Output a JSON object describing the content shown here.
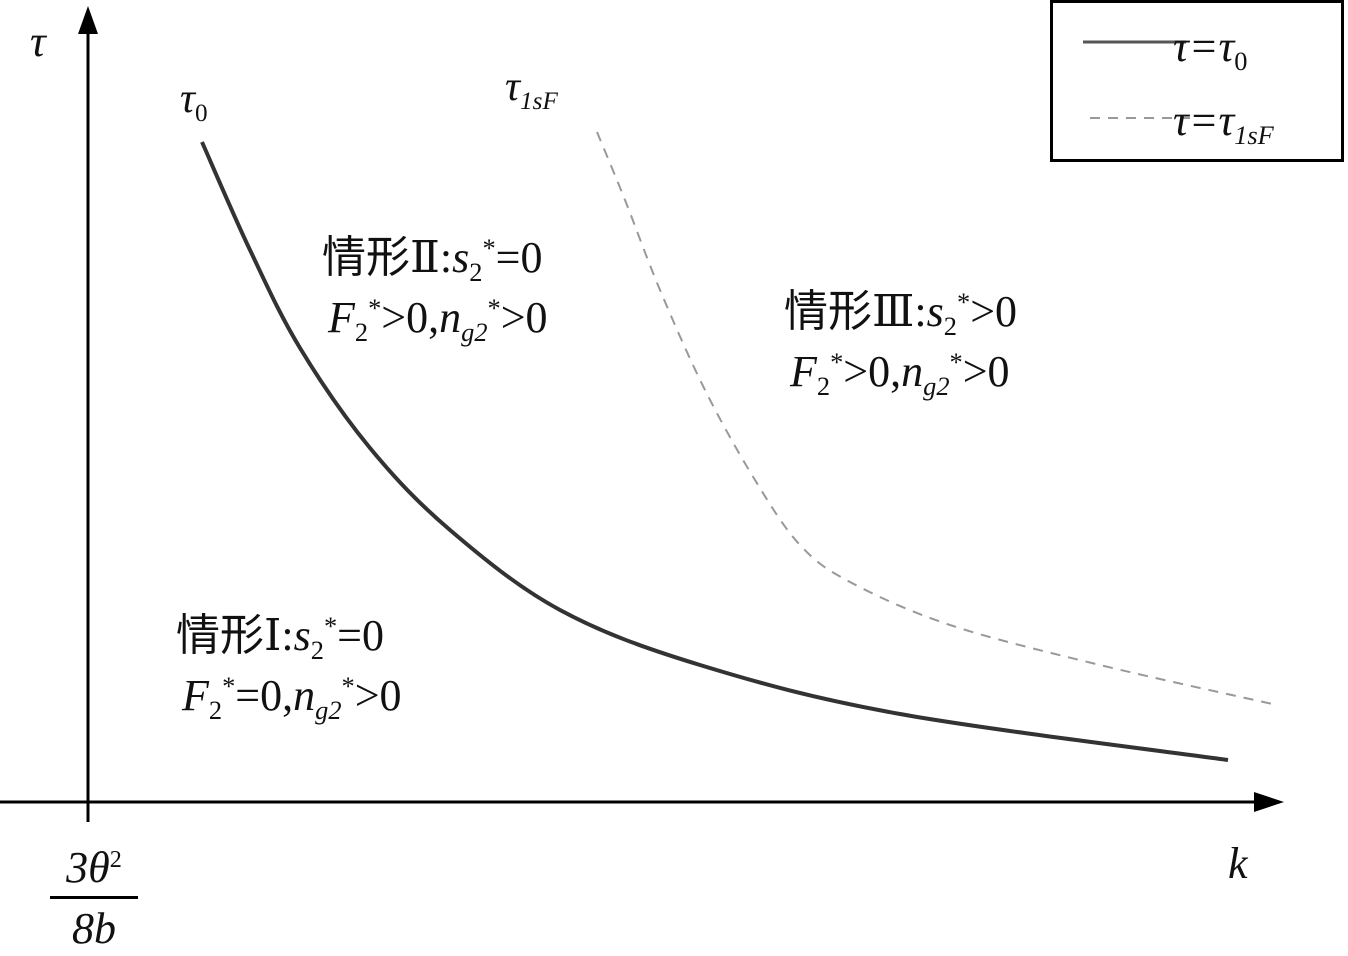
{
  "axes": {
    "y_label": "τ",
    "x_label": "k",
    "x_origin_label": {
      "numerator": "3θ",
      "numerator_sup": "2",
      "denominator": "8b"
    }
  },
  "curve_labels": [
    {
      "base": "τ",
      "sub": "0"
    },
    {
      "base": "τ",
      "sub": "1sF"
    }
  ],
  "legend": {
    "items": [
      {
        "base": "τ=τ",
        "sub": "0",
        "style": "solid",
        "color": "#333333"
      },
      {
        "base": "τ=τ",
        "sub": "1sF",
        "style": "dashed",
        "color": "#999999"
      }
    ]
  },
  "regions": [
    {
      "name": "case-1",
      "line1": [
        [
          "情形Ⅰ:",
          "n"
        ],
        [
          "s",
          "i"
        ],
        [
          "2",
          "sub"
        ],
        [
          "*",
          "sup"
        ],
        [
          "=0",
          "n"
        ]
      ],
      "line2": [
        [
          "F",
          "i"
        ],
        [
          "2",
          "sub"
        ],
        [
          "*",
          "sup"
        ],
        [
          "=0,",
          "n"
        ],
        [
          "n",
          "i"
        ],
        [
          "g2",
          "subi"
        ],
        [
          "*",
          "sup"
        ],
        [
          ">0",
          "n"
        ]
      ]
    },
    {
      "name": "case-2",
      "line1": [
        [
          "情形Ⅱ:",
          "n"
        ],
        [
          "s",
          "i"
        ],
        [
          "2",
          "sub"
        ],
        [
          "*",
          "sup"
        ],
        [
          "=0",
          "n"
        ]
      ],
      "line2": [
        [
          "F",
          "i"
        ],
        [
          "2",
          "sub"
        ],
        [
          "*",
          "sup"
        ],
        [
          ">0,",
          "n"
        ],
        [
          "n",
          "i"
        ],
        [
          "g2",
          "subi"
        ],
        [
          "*",
          "sup"
        ],
        [
          ">0",
          "n"
        ]
      ]
    },
    {
      "name": "case-3",
      "line1": [
        [
          "情形Ⅲ:",
          "n"
        ],
        [
          "s",
          "i"
        ],
        [
          "2",
          "sub"
        ],
        [
          "*",
          "sup"
        ],
        [
          ">0",
          "n"
        ]
      ],
      "line2": [
        [
          "F",
          "i"
        ],
        [
          "2",
          "sub"
        ],
        [
          "*",
          "sup"
        ],
        [
          ">0,",
          "n"
        ],
        [
          "n",
          "i"
        ],
        [
          "g2",
          "subi"
        ],
        [
          "*",
          "sup"
        ],
        [
          ">0",
          "n"
        ]
      ]
    }
  ],
  "colors": {
    "tau0_curve": "#333333",
    "tau1sF_curve": "#999999",
    "axis": "#000000"
  }
}
